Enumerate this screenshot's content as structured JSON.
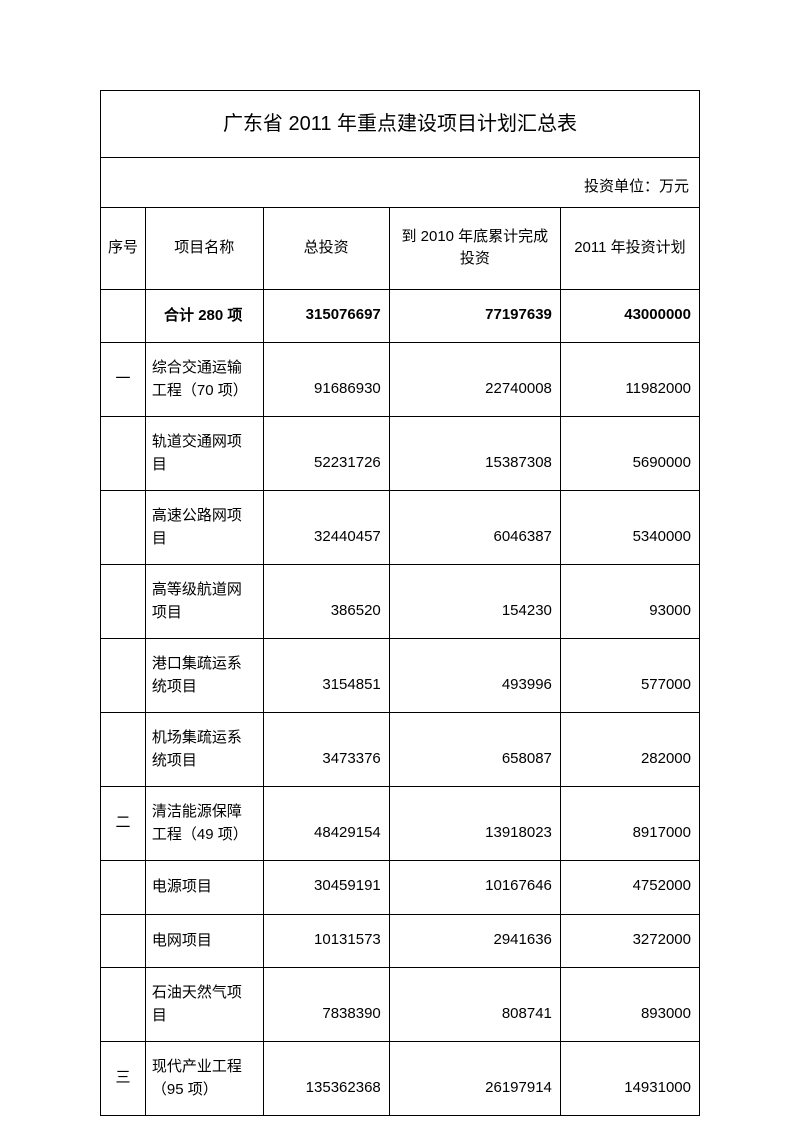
{
  "title": "广东省 2011 年重点建设项目计划汇总表",
  "unit_label": "投资单位：万元",
  "columns": {
    "seq": "序号",
    "name": "项目名称",
    "total": "总投资",
    "done2010": "到 2010 年底累计完成投资",
    "plan2011": "2011 年投资计划"
  },
  "total_row": {
    "name": "合计 280 项",
    "total": "315076697",
    "done2010": "77197639",
    "plan2011": "43000000"
  },
  "rows": [
    {
      "seq": "一",
      "name": "综合交通运输工程（70 项）",
      "total": "91686930",
      "done2010": "22740008",
      "plan2011": "11982000"
    },
    {
      "seq": "",
      "name": "轨道交通网项目",
      "total": "52231726",
      "done2010": "15387308",
      "plan2011": "5690000"
    },
    {
      "seq": "",
      "name": "高速公路网项目",
      "total": "32440457",
      "done2010": "6046387",
      "plan2011": "5340000"
    },
    {
      "seq": "",
      "name": "高等级航道网项目",
      "total": "386520",
      "done2010": "154230",
      "plan2011": "93000"
    },
    {
      "seq": "",
      "name": "港口集疏运系统项目",
      "total": "3154851",
      "done2010": "493996",
      "plan2011": "577000"
    },
    {
      "seq": "",
      "name": "机场集疏运系统项目",
      "total": "3473376",
      "done2010": "658087",
      "plan2011": "282000"
    },
    {
      "seq": "二",
      "name": "清洁能源保障工程（49 项）",
      "total": "48429154",
      "done2010": "13918023",
      "plan2011": "8917000"
    },
    {
      "seq": "",
      "name": "电源项目",
      "total": "30459191",
      "done2010": "10167646",
      "plan2011": "4752000"
    },
    {
      "seq": "",
      "name": "电网项目",
      "total": "10131573",
      "done2010": "2941636",
      "plan2011": "3272000"
    },
    {
      "seq": "",
      "name": "石油天然气项目",
      "total": "7838390",
      "done2010": "808741",
      "plan2011": "893000"
    },
    {
      "seq": "三",
      "name": "现代产业工程（95 项）",
      "total": "135362368",
      "done2010": "26197914",
      "plan2011": "14931000"
    }
  ]
}
